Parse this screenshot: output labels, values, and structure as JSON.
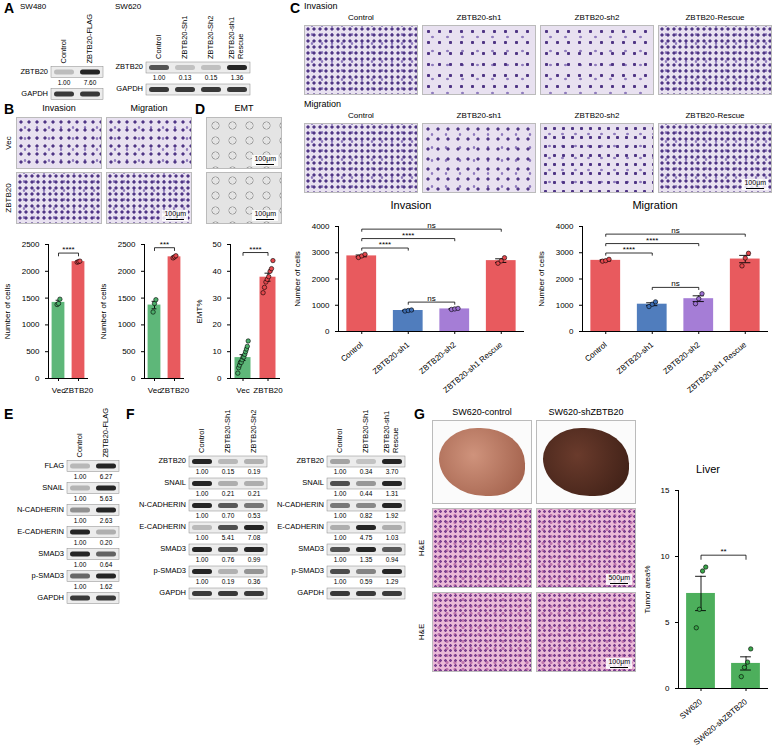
{
  "chart_data": [
    {
      "type": "bar",
      "categories": [
        "Vec",
        "ZBTB20"
      ],
      "values": [
        1420,
        2180
      ],
      "errors": [
        40,
        10
      ],
      "points": [
        [
          1380,
          1400,
          1480
        ],
        [
          2170,
          2180,
          2190
        ]
      ],
      "colors": [
        "#4caf6a",
        "#e5484d"
      ],
      "y_label": "Number of cells",
      "ylim": [
        0,
        2500
      ],
      "yticks": [
        0,
        500,
        1000,
        1500,
        2000,
        2500
      ],
      "comparisons": [
        {
          "pair": [
            0,
            1
          ],
          "label": "****"
        }
      ]
    },
    {
      "type": "bar",
      "categories": [
        "Vec",
        "ZBTB20"
      ],
      "values": [
        1370,
        2270
      ],
      "errors": [
        70,
        15
      ],
      "points": [
        [
          1240,
          1400,
          1470
        ],
        [
          2250,
          2270,
          2290
        ]
      ],
      "colors": [
        "#4caf6a",
        "#e5484d"
      ],
      "y_label": "Number of cells",
      "ylim": [
        0,
        2500
      ],
      "yticks": [
        0,
        500,
        1000,
        1500,
        2000,
        2500
      ],
      "comparisons": [
        {
          "pair": [
            0,
            1
          ],
          "label": "***"
        }
      ]
    },
    {
      "type": "bar",
      "categories": [
        "Vec",
        "ZBTB20"
      ],
      "values": [
        7.8,
        37.8
      ],
      "errors": [
        1.1,
        1.5
      ],
      "points": [
        [
          2,
          4,
          5,
          6,
          6,
          7,
          8,
          8,
          9,
          10,
          11,
          12,
          14
        ],
        [
          32,
          34,
          36,
          37,
          38,
          40,
          41,
          44
        ]
      ],
      "colors": [
        "#4caf6a",
        "#e5484d"
      ],
      "y_label": "EMT%",
      "ylim": [
        0,
        50
      ],
      "yticks": [
        0,
        10,
        20,
        30,
        40,
        50
      ],
      "comparisons": [
        {
          "pair": [
            0,
            1
          ],
          "label": "****"
        }
      ]
    },
    {
      "type": "bar",
      "title": "Invasion",
      "categories": [
        "Control",
        "ZBTB20-sh1",
        "ZBTB20-sh2",
        "ZBTB20-sh1 Rescue"
      ],
      "values": [
        2880,
        800,
        860,
        2700
      ],
      "errors": [
        35,
        15,
        15,
        70
      ],
      "points": [
        [
          2820,
          2880,
          2940
        ],
        [
          780,
          800,
          820
        ],
        [
          840,
          860,
          880
        ],
        [
          2600,
          2690,
          2810
        ]
      ],
      "colors": [
        "#e5484d",
        "#3d6fb6",
        "#9b6fd1",
        "#e5484d"
      ],
      "y_label": "Number of cells",
      "ylim": [
        0,
        4000
      ],
      "yticks": [
        0,
        1000,
        2000,
        3000,
        4000
      ],
      "comparisons": [
        {
          "pair": [
            0,
            1
          ],
          "label": "****"
        },
        {
          "pair": [
            0,
            2
          ],
          "label": "****"
        },
        {
          "pair": [
            1,
            2
          ],
          "label": "ns"
        },
        {
          "pair": [
            0,
            3
          ],
          "label": "ns"
        }
      ]
    },
    {
      "type": "bar",
      "title": "Migration",
      "categories": [
        "Control",
        "ZBTB20-sh1",
        "ZBTB20-sh2",
        "ZBTB20-sh1 Rescue"
      ],
      "values": [
        2710,
        1040,
        1250,
        2760
      ],
      "errors": [
        25,
        55,
        110,
        140
      ],
      "points": [
        [
          2680,
          2700,
          2750
        ],
        [
          950,
          1040,
          1130
        ],
        [
          1060,
          1250,
          1440
        ],
        [
          2500,
          2800,
          2980
        ]
      ],
      "colors": [
        "#e5484d",
        "#3d6fb6",
        "#9b6fd1",
        "#e5484d"
      ],
      "y_label": "Number of cells",
      "ylim": [
        0,
        4000
      ],
      "yticks": [
        0,
        1000,
        2000,
        3000,
        4000
      ],
      "comparisons": [
        {
          "pair": [
            0,
            1
          ],
          "label": "****"
        },
        {
          "pair": [
            0,
            2
          ],
          "label": "****"
        },
        {
          "pair": [
            1,
            2
          ],
          "label": "ns"
        },
        {
          "pair": [
            0,
            3
          ],
          "label": "ns"
        }
      ]
    },
    {
      "type": "bar",
      "title": "Liver",
      "categories": [
        "SW620",
        "SW620-shZBTB20"
      ],
      "values": [
        7.2,
        1.9
      ],
      "errors": [
        1.3,
        0.5
      ],
      "points": [
        [
          4.6,
          6.0,
          8.9,
          9.2
        ],
        [
          0.9,
          1.6,
          2.0,
          3.0
        ]
      ],
      "colors": [
        "#3aa64a",
        "#3aa64a"
      ],
      "y_label": "Tumor area%",
      "ylim": [
        0,
        15
      ],
      "yticks": [
        0,
        5,
        10,
        15
      ],
      "comparisons": [
        {
          "pair": [
            0,
            1
          ],
          "label": "**"
        }
      ]
    }
  ],
  "figure": {
    "panels": [
      {
        "label": "A",
        "blots": [
          {
            "title": "SW480",
            "lanes": [
              "Control",
              "ZBTB20-FLAG"
            ],
            "rows": [
              {
                "label": "ZBTB20",
                "quant": [
                  "1.00",
                  "7.60"
                ]
              },
              {
                "label": "GAPDH"
              }
            ]
          },
          {
            "title": "SW620",
            "lanes": [
              "Control",
              "ZBTB20-Sh1",
              "ZBTB20-Sh2",
              "ZBTB20-sh1 Rescue"
            ],
            "rows": [
              {
                "label": "ZBTB20",
                "quant": [
                  "1.00",
                  "0.13",
                  "0.15",
                  "1.36"
                ]
              },
              {
                "label": "GAPDH"
              }
            ]
          }
        ]
      },
      {
        "label": "B",
        "columns": [
          "Invasion",
          "Migration"
        ],
        "rows": [
          "Vec",
          "ZBTB20"
        ],
        "scale_bar": "100μm"
      },
      {
        "label": "C",
        "rows": [
          "Invasion",
          "Migration"
        ],
        "columns": [
          "Control",
          "ZBTB20-sh1",
          "ZBTB20-sh2",
          "ZBTB20-Rescue"
        ],
        "scale_bar": "100μm"
      },
      {
        "label": "D",
        "title": "EMT",
        "scale_bar": "100μm"
      },
      {
        "label": "E",
        "blots": [
          {
            "lanes": [
              "Control",
              "ZBTB20-FLAG"
            ],
            "rows": [
              {
                "label": "FLAG",
                "quant": [
                  "1.00",
                  "6.27"
                ]
              },
              {
                "label": "SNAIL",
                "quant": [
                  "1.00",
                  "5.63"
                ]
              },
              {
                "label": "N-CADHERIN",
                "quant": [
                  "1.00",
                  "2.63"
                ]
              },
              {
                "label": "E-CADHERIN",
                "quant": [
                  "1.00",
                  "0.20"
                ]
              },
              {
                "label": "SMAD3",
                "quant": [
                  "1.00",
                  "0.64"
                ]
              },
              {
                "label": "p-SMAD3",
                "quant": [
                  "1.00",
                  "1.62"
                ]
              },
              {
                "label": "GAPDH"
              }
            ]
          }
        ]
      },
      {
        "label": "F",
        "blots": [
          {
            "lanes": [
              "Control",
              "ZBTB20-Sh1",
              "ZBTB20-Sh2"
            ],
            "rows": [
              {
                "label": "ZBTB20",
                "quant": [
                  "1.00",
                  "0.15",
                  "0.19"
                ]
              },
              {
                "label": "SNAIL",
                "quant": [
                  "1.00",
                  "0.21",
                  "0.21"
                ]
              },
              {
                "label": "N-CADHERIN",
                "quant": [
                  "1.00",
                  "0.70",
                  "0.53"
                ]
              },
              {
                "label": "E-CADHERIN",
                "quant": [
                  "1.00",
                  "5.41",
                  "7.08"
                ]
              },
              {
                "label": "SMAD3",
                "quant": [
                  "1.00",
                  "0.76",
                  "0.99"
                ]
              },
              {
                "label": "p-SMAD3",
                "quant": [
                  "1.00",
                  "0.19",
                  "0.36"
                ]
              },
              {
                "label": "GAPDH"
              }
            ]
          },
          {
            "lanes": [
              "Control",
              "ZBTB20-Sh1",
              "ZBTB20-sh1 Rescue"
            ],
            "rows": [
              {
                "label": "ZBTB20",
                "quant": [
                  "1.00",
                  "0.34",
                  "3.70"
                ]
              },
              {
                "label": "SNAIL",
                "quant": [
                  "1.00",
                  "0.44",
                  "1.31"
                ]
              },
              {
                "label": "N-CADHERIN",
                "quant": [
                  "1.00",
                  "0.82",
                  "1.92"
                ]
              },
              {
                "label": "E-CADHERIN",
                "quant": [
                  "1.00",
                  "4.75",
                  "1.03"
                ]
              },
              {
                "label": "SMAD3",
                "quant": [
                  "1.00",
                  "1.35",
                  "0.94"
                ]
              },
              {
                "label": "p-SMAD3",
                "quant": [
                  "1.00",
                  "0.59",
                  "1.29"
                ]
              },
              {
                "label": "GAPDH"
              }
            ]
          }
        ]
      },
      {
        "label": "G",
        "columns": [
          "SW620-control",
          "SW620-shZBTB20"
        ],
        "rows": [
          "H&E",
          "H&E"
        ],
        "scale_bars": [
          "500μm",
          "100μm"
        ]
      }
    ]
  }
}
